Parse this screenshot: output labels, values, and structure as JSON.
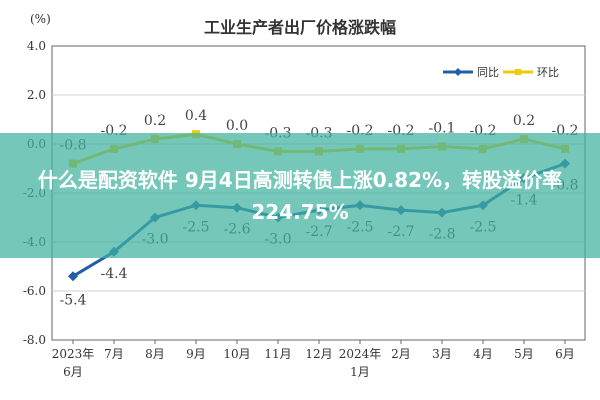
{
  "headline": "什么是配资软件 9月4日高测转债上涨0.82%，转股溢价率224.75%",
  "chart_data": {
    "type": "line",
    "title": "工业生产者出厂价格涨跌幅",
    "ylabel": "(%)",
    "ylim": [
      -8.0,
      4.0
    ],
    "yticks": [
      "4.0",
      "2.0",
      "0.0",
      "-2.0",
      "-4.0",
      "-6.0",
      "-8.0"
    ],
    "categories": [
      "2023年\n6月",
      "7月",
      "8月",
      "9月",
      "10月",
      "11月",
      "12月",
      "2024年\n1月",
      "2月",
      "3月",
      "4月",
      "5月",
      "6月"
    ],
    "series": [
      {
        "name": "同比",
        "color": "#1f5fa8",
        "values": [
          -5.4,
          -4.4,
          -3.0,
          -2.5,
          -2.6,
          -3.0,
          -2.7,
          -2.5,
          -2.7,
          -2.8,
          -2.5,
          -1.4,
          -0.8
        ],
        "labels": [
          "-5.4",
          "-4.4",
          "-3.0",
          "-2.5",
          "-2.6",
          "-3.0",
          "-2.7",
          "-2.5",
          "-2.7",
          "-2.8",
          "-2.5",
          "-1.4",
          "-0.8"
        ]
      },
      {
        "name": "环比",
        "color": "#f2c80f",
        "values": [
          -0.8,
          -0.2,
          0.2,
          0.4,
          0.0,
          -0.3,
          -0.3,
          -0.2,
          -0.2,
          -0.1,
          -0.2,
          0.2,
          -0.2
        ],
        "labels": [
          "-0.8",
          "-0.2",
          "0.2",
          "0.4",
          "0.0",
          "-0.3",
          "-0.3",
          "-0.2",
          "-0.2",
          "-0.1",
          "-0.2",
          "0.2",
          "-0.2"
        ]
      }
    ],
    "grid": true,
    "legend": "top-right"
  }
}
